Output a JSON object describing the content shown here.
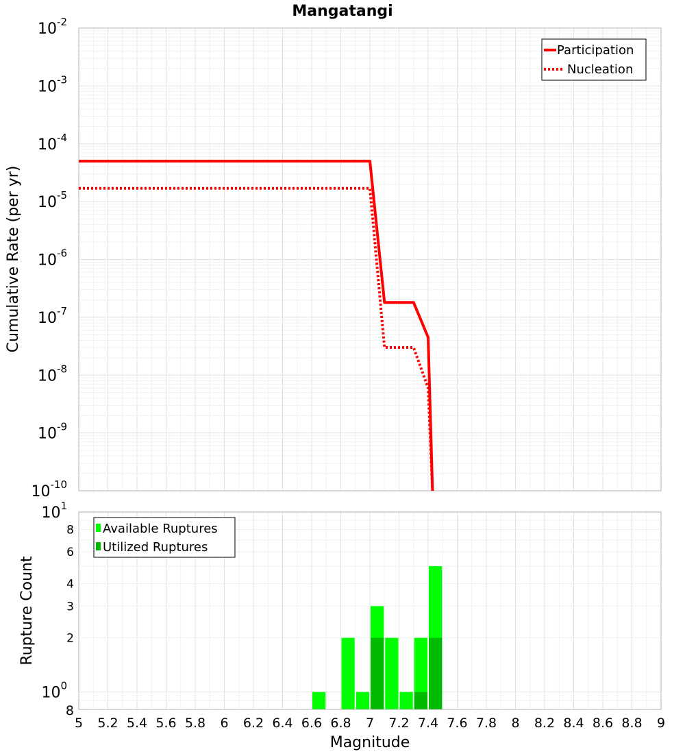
{
  "chart_data": [
    {
      "type": "line",
      "title": "Mangatangi",
      "xlabel": "",
      "ylabel": "Cumulative Rate (per yr)",
      "xlim": [
        5,
        9
      ],
      "ylim_exponents": [
        -10,
        -2
      ],
      "yscale": "log",
      "ytick_base": "10",
      "ytick_exponents": [
        "-10",
        "-9",
        "-8",
        "-7",
        "-6",
        "-5",
        "-4",
        "-3",
        "-2"
      ],
      "legend": {
        "position": "top-right"
      },
      "series": [
        {
          "name": "Participation",
          "style": "solid",
          "color": "#ff0000",
          "x": [
            5.0,
            7.0,
            7.1,
            7.3,
            7.4,
            7.43
          ],
          "y": [
            5e-05,
            5e-05,
            1.8e-07,
            1.8e-07,
            4.5e-08,
            1e-10
          ]
        },
        {
          "name": "Nucleation",
          "style": "dotted",
          "color": "#ff0000",
          "x": [
            5.0,
            7.0,
            7.1,
            7.3,
            7.4,
            7.43
          ],
          "y": [
            1.7e-05,
            1.7e-05,
            3e-08,
            3e-08,
            6e-09,
            1e-10
          ]
        }
      ]
    },
    {
      "type": "bar",
      "title": "",
      "xlabel": "Magnitude",
      "ylabel": "Rupture Count",
      "xlim": [
        5,
        9
      ],
      "ylim": [
        0.8,
        10
      ],
      "yscale": "log",
      "legend": {
        "position": "top-left"
      },
      "xticks": [
        "5",
        "5.2",
        "5.4",
        "5.6",
        "5.8",
        "6",
        "6.2",
        "6.4",
        "6.6",
        "6.8",
        "7",
        "7.2",
        "7.4",
        "7.6",
        "7.8",
        "8",
        "8.2",
        "8.4",
        "8.6",
        "8.8",
        "9"
      ],
      "ytick_labels": [
        {
          "label": "8",
          "value": 8
        },
        {
          "label": "6",
          "value": 6
        },
        {
          "label": "4",
          "value": 4
        },
        {
          "label": "3",
          "value": 3
        },
        {
          "label": "2",
          "value": 2
        }
      ],
      "ytick_major": [
        {
          "base": "10",
          "exp": "1",
          "value": 10
        },
        {
          "base": "10",
          "exp": "0",
          "value": 1
        }
      ],
      "ytick_bottom": {
        "label": "8",
        "value": 0.8
      },
      "bin_width": 0.1,
      "bin_centers": [
        6.65,
        6.85,
        6.95,
        7.05,
        7.15,
        7.25,
        7.35,
        7.45
      ],
      "series": [
        {
          "name": "Available Ruptures",
          "color": "#00ff00",
          "values": [
            1,
            2,
            1,
            3,
            2,
            1,
            2,
            5
          ]
        },
        {
          "name": "Utilized Ruptures",
          "color": "#00bb00",
          "values": [
            0,
            0,
            0,
            2,
            0,
            0,
            1,
            2
          ]
        }
      ]
    }
  ]
}
